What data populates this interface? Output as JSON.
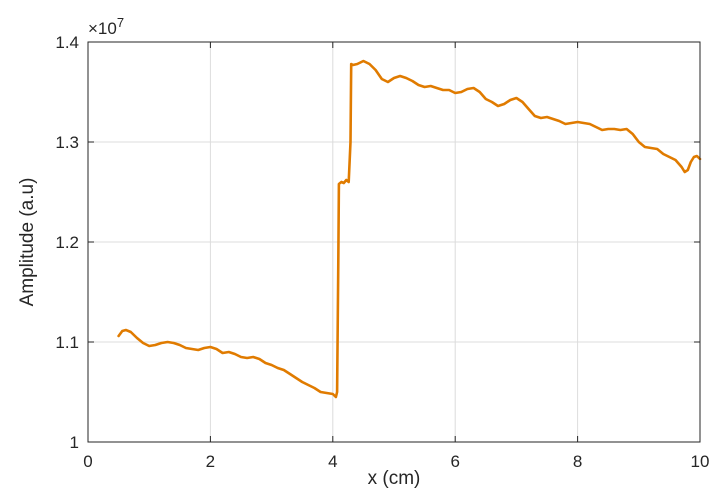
{
  "chart_data": {
    "type": "line",
    "title": "",
    "xlabel": "x (cm)",
    "ylabel": "Amplitude (a.u)",
    "y_multiplier_prefix": "×10",
    "y_multiplier_exponent": "7",
    "xlim": [
      0,
      10
    ],
    "ylim": [
      1.0,
      1.4
    ],
    "x_ticks": [
      0,
      2,
      4,
      6,
      8,
      10
    ],
    "x_tick_labels": [
      "0",
      "2",
      "4",
      "6",
      "8",
      "10"
    ],
    "y_ticks": [
      1.0,
      1.1,
      1.2,
      1.3,
      1.4
    ],
    "y_tick_labels": [
      "1",
      "1.1",
      "1.2",
      "1.3",
      "1.4"
    ],
    "grid": true,
    "line_color": "#e07b00",
    "series": [
      {
        "x": [
          0.5,
          0.56,
          0.62,
          0.7,
          0.8,
          0.9,
          1.0,
          1.1,
          1.2,
          1.3,
          1.4,
          1.5,
          1.6,
          1.7,
          1.8,
          1.9,
          2.0,
          2.1,
          2.2,
          2.3,
          2.4,
          2.5,
          2.6,
          2.7,
          2.8,
          2.9,
          3.0,
          3.1,
          3.2,
          3.3,
          3.4,
          3.5,
          3.6,
          3.7,
          3.8,
          3.9,
          4.0,
          4.05,
          4.07,
          4.09,
          4.1,
          4.14,
          4.18,
          4.22,
          4.26,
          4.29,
          4.3,
          4.33,
          4.4,
          4.5,
          4.6,
          4.7,
          4.8,
          4.9,
          5.0,
          5.1,
          5.2,
          5.3,
          5.4,
          5.5,
          5.6,
          5.7,
          5.8,
          5.9,
          6.0,
          6.1,
          6.2,
          6.3,
          6.4,
          6.5,
          6.6,
          6.7,
          6.8,
          6.9,
          7.0,
          7.1,
          7.2,
          7.3,
          7.4,
          7.5,
          7.6,
          7.7,
          7.8,
          7.9,
          8.0,
          8.1,
          8.2,
          8.3,
          8.4,
          8.5,
          8.6,
          8.7,
          8.8,
          8.9,
          9.0,
          9.1,
          9.2,
          9.3,
          9.4,
          9.5,
          9.6,
          9.7,
          9.75,
          9.8,
          9.85,
          9.9,
          9.95,
          10.0
        ],
        "y": [
          1.106,
          1.111,
          1.112,
          1.11,
          1.104,
          1.099,
          1.096,
          1.097,
          1.099,
          1.1,
          1.099,
          1.097,
          1.094,
          1.093,
          1.092,
          1.094,
          1.095,
          1.093,
          1.089,
          1.09,
          1.088,
          1.085,
          1.084,
          1.085,
          1.083,
          1.079,
          1.077,
          1.074,
          1.072,
          1.068,
          1.064,
          1.06,
          1.057,
          1.054,
          1.05,
          1.049,
          1.048,
          1.045,
          1.05,
          1.18,
          1.258,
          1.26,
          1.259,
          1.262,
          1.26,
          1.3,
          1.378,
          1.377,
          1.378,
          1.381,
          1.378,
          1.372,
          1.363,
          1.36,
          1.364,
          1.366,
          1.364,
          1.361,
          1.357,
          1.355,
          1.356,
          1.354,
          1.352,
          1.352,
          1.349,
          1.35,
          1.353,
          1.354,
          1.35,
          1.343,
          1.34,
          1.336,
          1.338,
          1.342,
          1.344,
          1.34,
          1.333,
          1.326,
          1.324,
          1.325,
          1.323,
          1.321,
          1.318,
          1.319,
          1.32,
          1.319,
          1.318,
          1.315,
          1.312,
          1.313,
          1.313,
          1.312,
          1.313,
          1.308,
          1.3,
          1.295,
          1.294,
          1.293,
          1.288,
          1.285,
          1.282,
          1.275,
          1.27,
          1.272,
          1.28,
          1.285,
          1.286,
          1.283
        ]
      }
    ]
  }
}
